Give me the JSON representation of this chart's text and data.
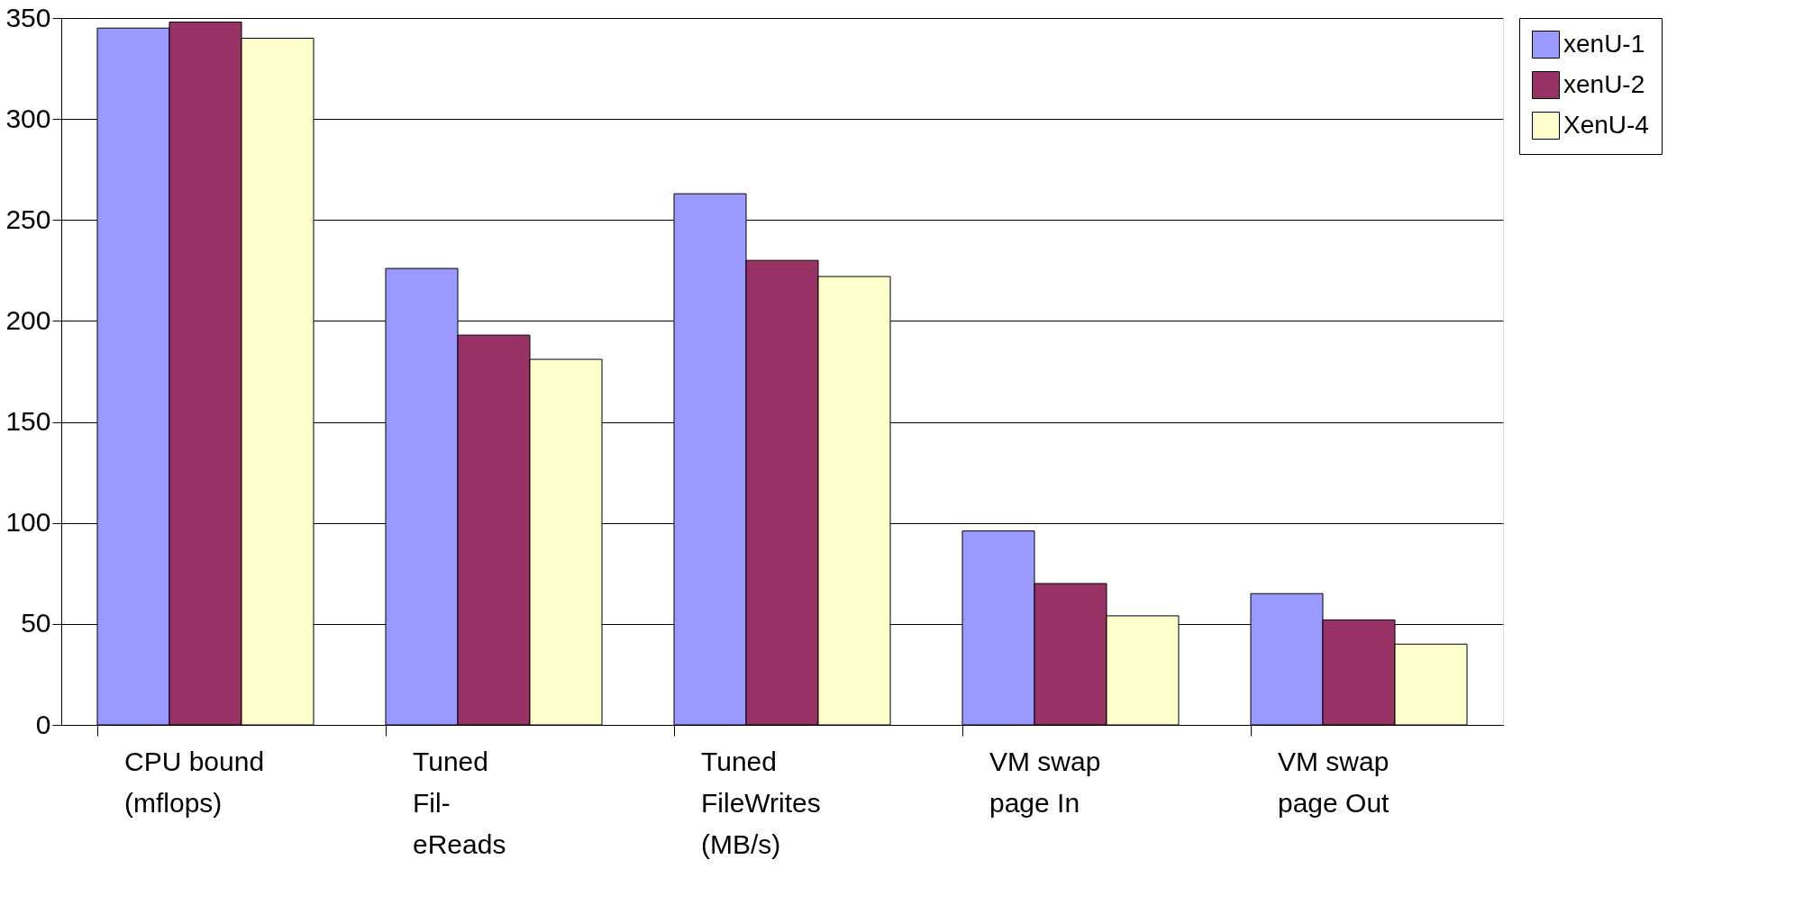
{
  "chart_data": {
    "type": "bar",
    "categories": [
      "CPU bound\n(mflops)",
      "Tuned\nFil-\neReads",
      "Tuned\nFileWrites\n(MB/s)",
      "VM swap\npage In",
      "VM swap\npage Out"
    ],
    "series": [
      {
        "name": "xenU-1",
        "color": "#9999ff",
        "values": [
          345,
          226,
          263,
          96,
          65
        ]
      },
      {
        "name": "xenU-2",
        "color": "#993366",
        "values": [
          348,
          193,
          230,
          70,
          52
        ]
      },
      {
        "name": "XenU-4",
        "color": "#ffffcc",
        "values": [
          340,
          181,
          222,
          54,
          40
        ]
      }
    ],
    "ylim": [
      0,
      350
    ],
    "yticks": [
      0,
      50,
      100,
      150,
      200,
      250,
      300,
      350
    ],
    "grid": "y",
    "legend": "right"
  }
}
